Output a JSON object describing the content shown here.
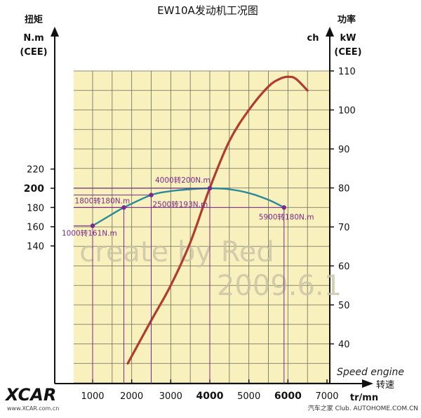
{
  "chart_data": {
    "type": "line",
    "title": "EW10A发动机工况图",
    "left_axis": {
      "title": "扭矩",
      "unit_line1": "N.m",
      "unit_line2": "(CEE)",
      "ticks": [
        140,
        160,
        180,
        200,
        220
      ],
      "highlight_tick": 200
    },
    "right_axis": {
      "title": "功率",
      "unit_ch": "ch",
      "unit_kw": "kW",
      "unit_line2": "(CEE)",
      "ticks": [
        40,
        50,
        60,
        70,
        80,
        90,
        100,
        110
      ]
    },
    "x_axis": {
      "label_italic": "Speed engine",
      "label_cn": "转速",
      "unit": "tr/mn",
      "ticks": [
        1000,
        2000,
        3000,
        4000,
        5000,
        6000,
        7000
      ],
      "bold_ticks": [
        4000,
        6000
      ]
    },
    "series": [
      {
        "role": "torque",
        "color": "#2a8a9a",
        "x": [
          1000,
          1500,
          1800,
          2500,
          3000,
          3500,
          4000,
          4500,
          5000,
          5500,
          5900
        ],
        "y": [
          161,
          173,
          180,
          193,
          197,
          199,
          200,
          199,
          195,
          188,
          180
        ]
      },
      {
        "role": "power",
        "color": "#b23a2e",
        "x": [
          1900,
          2500,
          3000,
          3500,
          4000,
          4500,
          5000,
          5500,
          5800,
          6000,
          6200,
          6500
        ],
        "y": [
          35,
          46,
          55,
          66,
          80,
          92,
          100,
          106,
          108,
          108.5,
          108,
          105
        ]
      }
    ],
    "annotations": [
      {
        "label": "1000转161N.m",
        "x": 1000,
        "y": 161
      },
      {
        "label": "1800转180N.m",
        "x": 1800,
        "y": 180
      },
      {
        "label": "2500转193N.m",
        "x": 2500,
        "y": 193
      },
      {
        "label": "4000转200N.m",
        "x": 4000,
        "y": 200
      },
      {
        "label": "5900转180N.m",
        "x": 5900,
        "y": 180
      }
    ],
    "grid": true,
    "colors": {
      "plot_bg": "#f8f1be",
      "grid": "#6a6a5a",
      "annotation": "#7a2a8a"
    }
  },
  "watermarks": {
    "create": "create by Red",
    "date": "2009.6.1",
    "brand": "XCAR",
    "brand_url": "www.XCAR.com.cn",
    "footer_right": "汽车之家 Club. AUTOHOME.COM.CN"
  }
}
